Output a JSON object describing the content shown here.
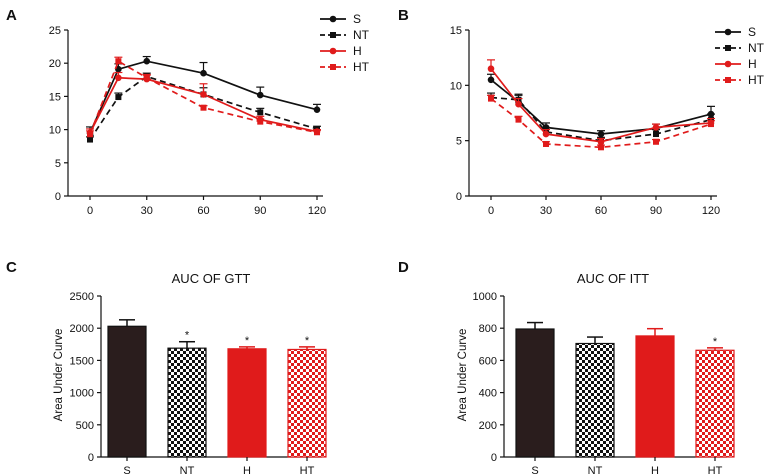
{
  "colors": {
    "black": "#111111",
    "red": "#e01b1b",
    "bar_dark": "#2a1d1d"
  },
  "chart_data": [
    {
      "panel": "A",
      "type": "line",
      "x": [
        0,
        15,
        30,
        60,
        90,
        120
      ],
      "xticks": [
        "0",
        "30",
        "60",
        "90",
        "120"
      ],
      "ylim": [
        0,
        25
      ],
      "yticks": [
        "0",
        "5",
        "10",
        "15",
        "20",
        "25"
      ],
      "series": [
        {
          "name": "S",
          "values": [
            9.5,
            19.1,
            20.3,
            18.5,
            15.2,
            13.0
          ],
          "err": [
            0.9,
            0.8,
            0.7,
            1.6,
            1.2,
            0.8
          ],
          "color": "#111111",
          "dashed": false,
          "marker": "circle"
        },
        {
          "name": "NT",
          "values": [
            8.5,
            14.9,
            18.0,
            15.3,
            12.6,
            10.1
          ],
          "err": [
            0.4,
            0.6,
            0.5,
            1.0,
            0.6,
            0.4
          ],
          "color": "#111111",
          "dashed": true,
          "marker": "square"
        },
        {
          "name": "H",
          "values": [
            9.5,
            17.8,
            17.6,
            15.3,
            11.5,
            9.7
          ],
          "err": [
            0.6,
            0.8,
            0.6,
            1.6,
            0.5,
            0.3
          ],
          "color": "#e01b1b",
          "dashed": false,
          "marker": "circle"
        },
        {
          "name": "HT",
          "values": [
            9.3,
            20.3,
            17.8,
            13.3,
            11.2,
            9.6
          ],
          "err": [
            0.5,
            0.6,
            0.5,
            0.3,
            0.4,
            0.3
          ],
          "color": "#e01b1b",
          "dashed": true,
          "marker": "square"
        }
      ]
    },
    {
      "panel": "B",
      "type": "line",
      "x": [
        0,
        15,
        30,
        60,
        90,
        120
      ],
      "xticks": [
        "0",
        "30",
        "60",
        "90",
        "120"
      ],
      "ylim": [
        0,
        15
      ],
      "yticks": [
        "0",
        "5",
        "10",
        "15"
      ],
      "series": [
        {
          "name": "S",
          "values": [
            10.5,
            8.5,
            6.2,
            5.6,
            6.1,
            7.4
          ],
          "err": [
            0.5,
            0.6,
            0.4,
            0.3,
            0.4,
            0.7
          ],
          "color": "#111111",
          "dashed": false,
          "marker": "circle"
        },
        {
          "name": "NT",
          "values": [
            8.9,
            8.7,
            5.8,
            5.0,
            5.6,
            6.9
          ],
          "err": [
            0.4,
            0.5,
            0.4,
            0.3,
            0.4,
            0.5
          ],
          "color": "#111111",
          "dashed": true,
          "marker": "square"
        },
        {
          "name": "H",
          "values": [
            11.5,
            8.3,
            5.6,
            4.9,
            6.2,
            6.6
          ],
          "err": [
            0.8,
            0.5,
            0.4,
            0.3,
            0.3,
            0.4
          ],
          "color": "#e01b1b",
          "dashed": false,
          "marker": "circle"
        },
        {
          "name": "HT",
          "values": [
            8.8,
            6.9,
            4.7,
            4.4,
            4.9,
            6.5
          ],
          "err": [
            0.3,
            0.3,
            0.2,
            0.2,
            0.2,
            0.3
          ],
          "color": "#e01b1b",
          "dashed": true,
          "marker": "square"
        }
      ]
    },
    {
      "panel": "C",
      "type": "bar",
      "title": "AUC OF GTT",
      "ylabel": "Area Under Curve",
      "categories": [
        "S",
        "NT",
        "H",
        "HT"
      ],
      "values": [
        2030,
        1690,
        1680,
        1670
      ],
      "err": [
        100,
        100,
        30,
        40
      ],
      "significance": [
        "",
        "*",
        "*",
        "*"
      ],
      "ylim": [
        0,
        2500
      ],
      "yticks": [
        "0",
        "500",
        "1000",
        "1500",
        "2000",
        "2500"
      ]
    },
    {
      "panel": "D",
      "type": "bar",
      "title": "AUC OF ITT",
      "ylabel": "Area Under Curve",
      "categories": [
        "S",
        "NT",
        "H",
        "HT"
      ],
      "values": [
        795,
        705,
        752,
        663
      ],
      "err": [
        40,
        40,
        45,
        15
      ],
      "significance": [
        "",
        "",
        "",
        "*"
      ],
      "ylim": [
        0,
        1000
      ],
      "yticks": [
        "0",
        "200",
        "400",
        "600",
        "800",
        "1000"
      ]
    }
  ]
}
